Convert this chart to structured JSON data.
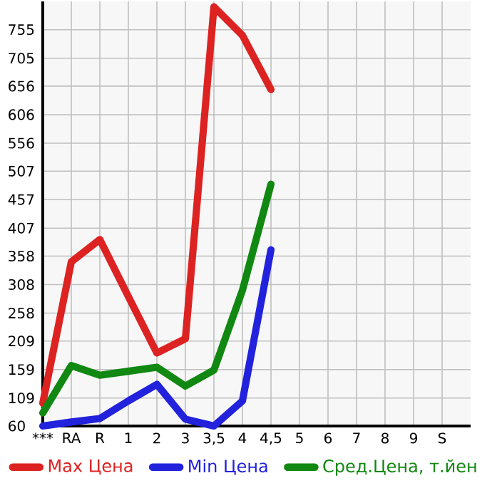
{
  "chart_data": {
    "type": "line",
    "categories": [
      "***",
      "RA",
      "R",
      "1",
      "2",
      "3",
      "3,5",
      "4",
      "4,5",
      "5",
      "6",
      "7",
      "8",
      "9",
      "S"
    ],
    "series": [
      {
        "name": "Max Цена",
        "color": "#dd2222",
        "values": [
          100,
          348,
          387,
          287,
          188,
          213,
          795,
          745,
          650,
          null,
          null,
          null,
          null,
          null,
          null
        ]
      },
      {
        "name": "Min Цена",
        "color": "#2222dd",
        "values": [
          60,
          67,
          73,
          104,
          133,
          72,
          60,
          104,
          369,
          null,
          null,
          null,
          null,
          null,
          null
        ]
      },
      {
        "name": "Сред.Цена, т.йен",
        "color": "#118811",
        "values": [
          83,
          166,
          149,
          156,
          163,
          130,
          158,
          298,
          484,
          null,
          null,
          null,
          null,
          null,
          null
        ]
      }
    ],
    "ylim": [
      60,
      804.6
    ],
    "yticks": [
      60,
      109,
      159,
      209,
      258,
      308,
      358,
      407,
      457,
      507,
      556,
      606,
      656,
      705,
      755
    ],
    "grid": true,
    "legend": "bottom",
    "marker": "none",
    "line_style": "solid"
  }
}
